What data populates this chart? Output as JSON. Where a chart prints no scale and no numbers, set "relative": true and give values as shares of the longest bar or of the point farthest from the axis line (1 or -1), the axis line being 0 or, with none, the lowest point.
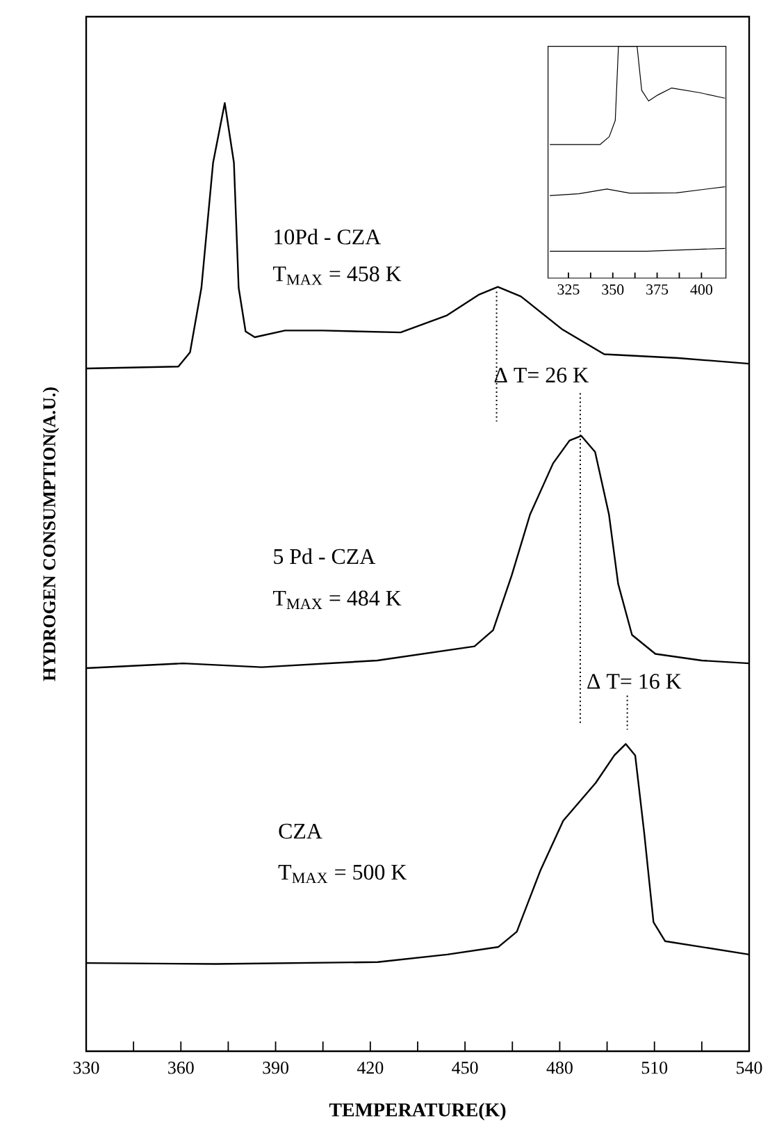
{
  "chart_data": [
    {
      "type": "line",
      "relative": true,
      "xlabel": "TEMPERATURE(K)",
      "ylabel": "HYDROGEN CONSUMPTION(A.U.)",
      "xlim": [
        330,
        540
      ],
      "xticks": [
        330,
        {
          "value": 345,
          "label": null
        },
        360,
        {
          "value": 375,
          "label": null
        },
        390,
        {
          "value": 405,
          "label": null
        },
        420,
        {
          "value": 435,
          "label": null
        },
        450,
        {
          "value": 465,
          "label": null
        },
        480,
        {
          "value": 495,
          "label": null
        },
        510,
        {
          "value": 525,
          "label": null
        },
        540
      ],
      "series": [
        {
          "color": "#000000",
          "x": [
            330,
            359.2,
            362.9,
            366.5,
            370.2,
            373.9,
            376.8,
            378.3,
            380.5,
            383.4,
            393,
            404.7,
            429.6,
            444.3,
            454.5,
            460.4,
            467.7,
            480.9,
            494.1,
            517.6,
            540
          ],
          "values": [
            0.72,
            0.722,
            0.737,
            0.805,
            0.937,
            1.0,
            0.937,
            0.805,
            0.759,
            0.753,
            0.76,
            0.76,
            0.758,
            0.776,
            0.798,
            0.806,
            0.796,
            0.761,
            0.735,
            0.731,
            0.725
          ]
        },
        {
          "color": "#000000",
          "x": [
            330,
            360.7,
            385.6,
            422.2,
            453,
            458.9,
            464.8,
            470.6,
            477.9,
            483.1,
            486.8,
            491.2,
            495.6,
            498.5,
            502.9,
            510.3,
            525,
            540
          ],
          "values": [
            0.404,
            0.409,
            0.405,
            0.412,
            0.427,
            0.444,
            0.502,
            0.566,
            0.62,
            0.644,
            0.649,
            0.632,
            0.566,
            0.493,
            0.439,
            0.419,
            0.412,
            0.409
          ]
        },
        {
          "color": "#000000",
          "x": [
            330,
            371.1,
            422.4,
            444.4,
            460.6,
            466.4,
            473.8,
            481.1,
            491.4,
            497.3,
            500.9,
            503.9,
            506.8,
            509.7,
            513.4,
            540
          ],
          "values": [
            0.093,
            0.092,
            0.094,
            0.102,
            0.11,
            0.126,
            0.19,
            0.243,
            0.283,
            0.312,
            0.324,
            0.312,
            0.229,
            0.136,
            0.116,
            0.102
          ]
        },
        {
          "color": "#000000",
          "line_style": "dotted",
          "x": [
            460,
            460
          ],
          "values": [
            0.801,
            0.664
          ]
        },
        {
          "color": "#000000",
          "line_style": "dotted",
          "x": [
            486.5,
            486.5
          ],
          "values": [
            0.694,
            0.346
          ]
        },
        {
          "color": "#000000",
          "line_style": "dotted",
          "x": [
            501.4,
            501.4
          ],
          "values": [
            0.375,
            0.339
          ]
        }
      ],
      "annotations": [
        "10Pd - CZA",
        "T$_{MAX}$ = 458 K",
        "Δ T= 26 K",
        "5 Pd - CZA",
        "T$_{MAX}$ = 484 K",
        "Δ T= 16 K",
        "CZA",
        "T$_{MAX}$ = 500 K"
      ]
    },
    {
      "type": "line",
      "relative": true,
      "xlim": [
        313.5,
        413.8
      ],
      "xticks": [
        325,
        {
          "value": 337.5,
          "label": null
        },
        350,
        {
          "value": 362.5,
          "label": null
        },
        375,
        {
          "value": 387.5,
          "label": null
        },
        400
      ],
      "series": [
        {
          "color": "#000000",
          "x": [
            314.5,
            342.8,
            348,
            351.4,
            353.2,
            363.7,
            366.3,
            370.2,
            375.4,
            383.2,
            398.9,
            413.3
          ],
          "values": [
            0.576,
            0.576,
            0.61,
            0.68,
            1.0,
            1.0,
            0.81,
            0.764,
            0.79,
            0.82,
            0.8,
            0.776
          ]
        },
        {
          "color": "#000000",
          "x": [
            314.5,
            331,
            346.7,
            359.7,
            385.9,
            413.3
          ],
          "values": [
            0.356,
            0.364,
            0.384,
            0.366,
            0.368,
            0.394
          ]
        },
        {
          "color": "#000000",
          "x": [
            314.5,
            369,
            413.3
          ],
          "values": [
            0.116,
            0.116,
            0.128
          ]
        }
      ]
    }
  ]
}
